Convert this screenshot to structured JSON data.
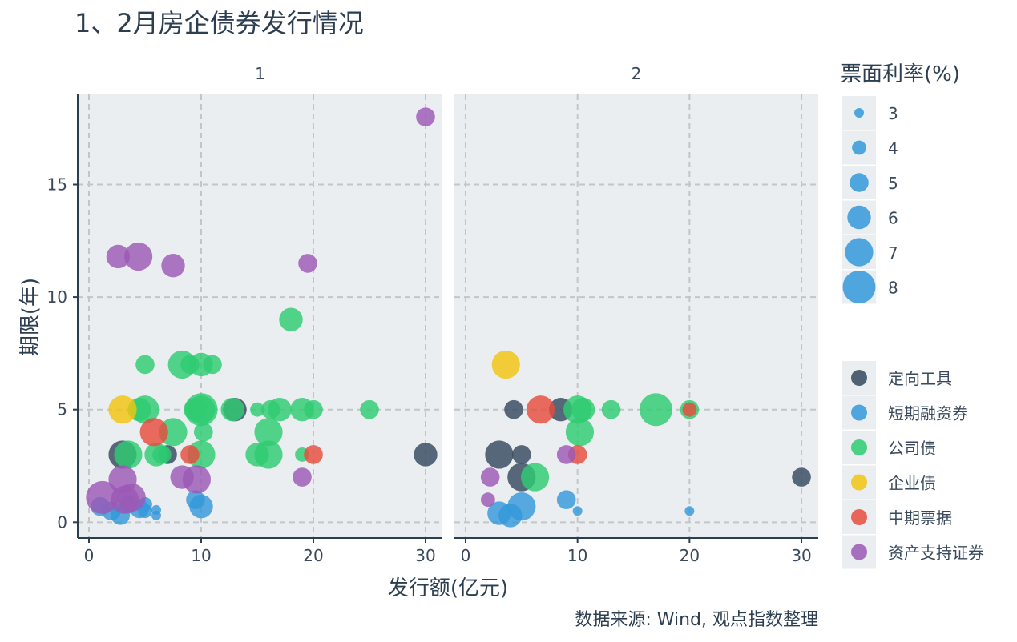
{
  "chart_data": {
    "type": "scatter",
    "title": "1、2月房企债券发行情况",
    "xlabel": "发行额(亿元)",
    "ylabel": "期限(年)",
    "source": "数据来源: Wind, 观点指数整理",
    "facets": [
      "1",
      "2"
    ],
    "xlim": [
      -1,
      31.5
    ],
    "ylim": [
      -0.7,
      19
    ],
    "x_ticks": [
      0,
      10,
      20,
      30
    ],
    "y_ticks": [
      0,
      5,
      10,
      15
    ],
    "grid": true,
    "size_legend": {
      "title": "票面利率(%)",
      "entries": [
        "3",
        "4",
        "5",
        "6",
        "7",
        "8"
      ],
      "color": "#3498db"
    },
    "color_legend": {
      "entries": [
        {
          "label": "定向工具",
          "color": "#34495e"
        },
        {
          "label": "短期融资券",
          "color": "#3498db"
        },
        {
          "label": "公司债",
          "color": "#2ecc71"
        },
        {
          "label": "企业债",
          "color": "#f1c40f"
        },
        {
          "label": "中期票据",
          "color": "#e74c3c"
        },
        {
          "label": "资产支持证券",
          "color": "#9b59b6"
        }
      ]
    },
    "series": [
      {
        "facet": 0,
        "type_index": 0,
        "points": [
          [
            3,
            3,
            7
          ],
          [
            7,
            3,
            5
          ],
          [
            13,
            5,
            6
          ],
          [
            30,
            3,
            6
          ]
        ]
      },
      {
        "facet": 0,
        "type_index": 1,
        "points": [
          [
            1,
            0.7,
            5
          ],
          [
            2,
            0.5,
            5
          ],
          [
            2.8,
            0.3,
            5
          ],
          [
            3.5,
            0.8,
            5
          ],
          [
            4.5,
            0.6,
            5
          ],
          [
            5,
            0.5,
            4
          ],
          [
            5,
            0.8,
            4
          ],
          [
            6,
            0.3,
            3
          ],
          [
            6,
            0.55,
            3
          ],
          [
            9.5,
            1,
            5
          ],
          [
            10,
            0.7,
            6
          ]
        ]
      },
      {
        "facet": 0,
        "type_index": 2,
        "points": [
          [
            3.5,
            3,
            7
          ],
          [
            5,
            7,
            5
          ],
          [
            5,
            5,
            7
          ],
          [
            4.5,
            5,
            6
          ],
          [
            6,
            3,
            6
          ],
          [
            6.5,
            3,
            5
          ],
          [
            7.5,
            4,
            7
          ],
          [
            8.3,
            7,
            7
          ],
          [
            9,
            7,
            5
          ],
          [
            9.5,
            5,
            6
          ],
          [
            10,
            7,
            6
          ],
          [
            10,
            5,
            7
          ],
          [
            10,
            5,
            8
          ],
          [
            10,
            3,
            7
          ],
          [
            10.2,
            4,
            5
          ],
          [
            11,
            7,
            5
          ],
          [
            12.8,
            5,
            6
          ],
          [
            15,
            5,
            4
          ],
          [
            15,
            3,
            6
          ],
          [
            16,
            4,
            7
          ],
          [
            16,
            3,
            7
          ],
          [
            16.2,
            5,
            5
          ],
          [
            17,
            5,
            6
          ],
          [
            18,
            9,
            6
          ],
          [
            19,
            3,
            4
          ],
          [
            19,
            5,
            6
          ],
          [
            20,
            5,
            5
          ],
          [
            25,
            5,
            5
          ]
        ]
      },
      {
        "facet": 0,
        "type_index": 3,
        "points": [
          [
            3,
            5,
            7
          ]
        ]
      },
      {
        "facet": 0,
        "type_index": 4,
        "points": [
          [
            5.8,
            4,
            7
          ],
          [
            9,
            3,
            5
          ],
          [
            20,
            3,
            5
          ]
        ]
      },
      {
        "facet": 0,
        "type_index": 5,
        "points": [
          [
            1.2,
            1.1,
            8
          ],
          [
            2.6,
            11.8,
            6
          ],
          [
            3,
            1.9,
            7
          ],
          [
            3.2,
            1,
            7
          ],
          [
            3.8,
            1.1,
            7
          ],
          [
            4.4,
            11.8,
            7
          ],
          [
            7.5,
            11.4,
            6
          ],
          [
            8.3,
            2,
            6
          ],
          [
            9.6,
            1.9,
            7
          ],
          [
            19.5,
            11.5,
            5
          ],
          [
            19,
            2,
            5
          ],
          [
            30,
            18,
            5
          ]
        ]
      },
      {
        "facet": 1,
        "type_index": 0,
        "points": [
          [
            3,
            3,
            7
          ],
          [
            4.3,
            5,
            5
          ],
          [
            5,
            3,
            5
          ],
          [
            5,
            2,
            7
          ],
          [
            8.5,
            5,
            6
          ],
          [
            30,
            2,
            5
          ]
        ]
      },
      {
        "facet": 1,
        "type_index": 1,
        "points": [
          [
            3,
            0.4,
            6
          ],
          [
            4,
            0.3,
            6
          ],
          [
            5,
            0.7,
            7
          ],
          [
            9,
            1,
            5
          ],
          [
            10,
            0.5,
            3
          ],
          [
            20,
            0.5,
            3
          ]
        ]
      },
      {
        "facet": 1,
        "type_index": 2,
        "points": [
          [
            6.2,
            2,
            7
          ],
          [
            10,
            5,
            7
          ],
          [
            10.2,
            4,
            7
          ],
          [
            10.5,
            5,
            6
          ],
          [
            13,
            5,
            5
          ],
          [
            17,
            5,
            8
          ],
          [
            20,
            5,
            5
          ]
        ]
      },
      {
        "facet": 1,
        "type_index": 3,
        "points": [
          [
            3.6,
            7,
            7
          ]
        ]
      },
      {
        "facet": 1,
        "type_index": 4,
        "points": [
          [
            6.7,
            5,
            7
          ],
          [
            10,
            3,
            5
          ],
          [
            20,
            5,
            4
          ]
        ]
      },
      {
        "facet": 1,
        "type_index": 5,
        "points": [
          [
            2,
            1,
            4
          ],
          [
            2.2,
            2,
            5
          ],
          [
            9,
            3,
            5
          ]
        ]
      }
    ]
  }
}
